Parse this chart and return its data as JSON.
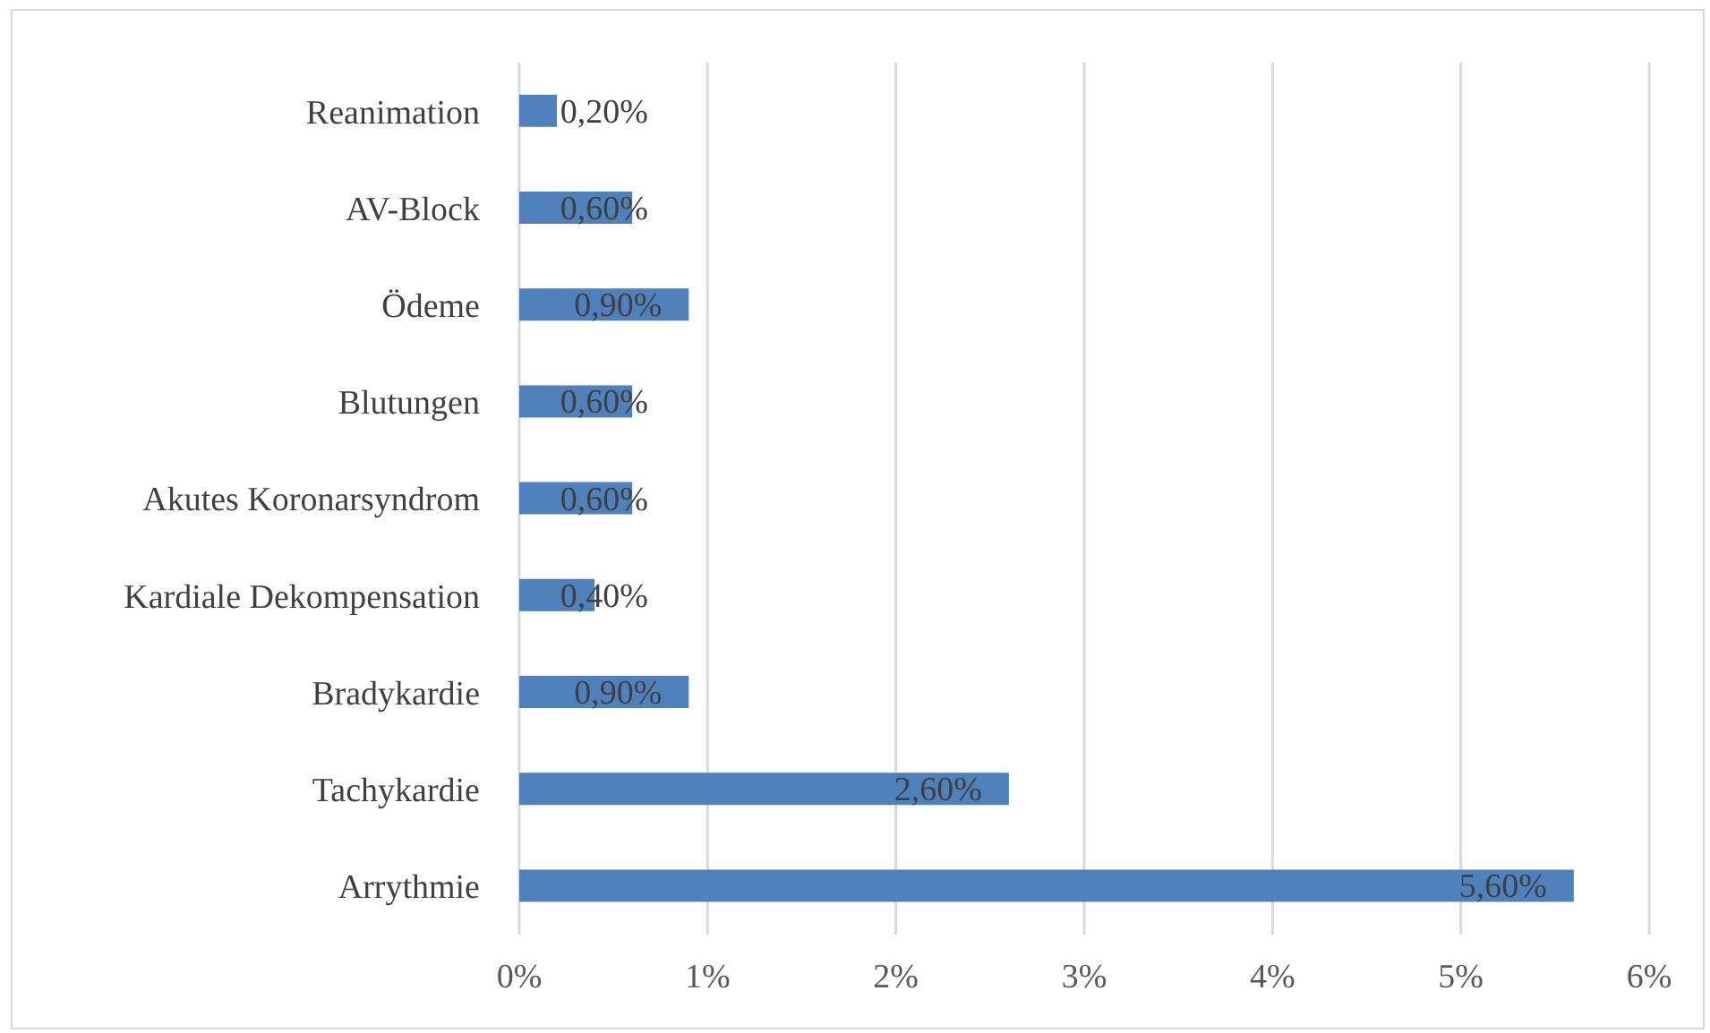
{
  "chart_data": {
    "type": "bar",
    "orientation": "horizontal",
    "categories": [
      "Reanimation",
      "AV-Block",
      "Ödeme",
      "Blutungen",
      "Akutes Koronarsyndrom",
      "Kardiale Dekompensation",
      "Bradykardie",
      "Tachykardie",
      "Arrythmie"
    ],
    "values": [
      0.2,
      0.6,
      0.9,
      0.6,
      0.6,
      0.4,
      0.9,
      2.6,
      5.6
    ],
    "value_labels": [
      "0,20%",
      "0,60%",
      "0,90%",
      "0,60%",
      "0,60%",
      "0,40%",
      "0,90%",
      "2,60%",
      "5,60%"
    ],
    "color": "#4f81bd",
    "xlim": [
      0,
      6
    ],
    "xticks": [
      {
        "value": 0,
        "label": "0%"
      },
      {
        "value": 1,
        "label": "1%"
      },
      {
        "value": 2,
        "label": "2%"
      },
      {
        "value": 3,
        "label": "3%"
      },
      {
        "value": 4,
        "label": "4%"
      },
      {
        "value": 5,
        "label": "5%"
      },
      {
        "value": 6,
        "label": "6%"
      }
    ],
    "grid": "x"
  }
}
